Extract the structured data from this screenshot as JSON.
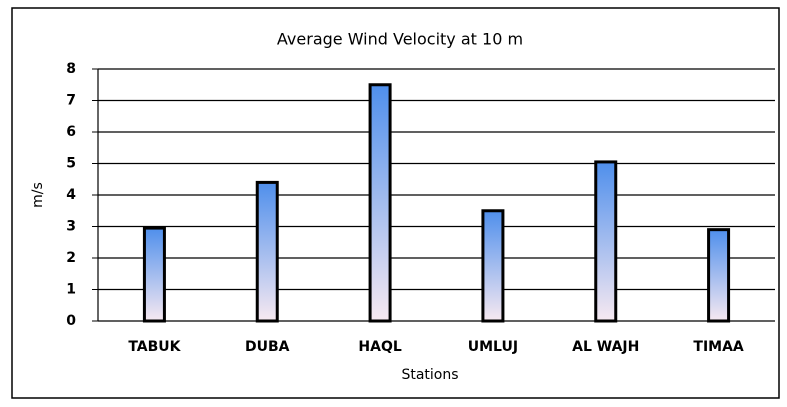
{
  "chart_data": {
    "type": "bar",
    "title": "Average Wind Velocity at 10 m",
    "x_label": "Stations",
    "y_label": "m/s",
    "categories": [
      "TABUK",
      "DUBA",
      "HAQL",
      "UMLUJ",
      "AL WAJH",
      "TIMAA"
    ],
    "values": [
      2.95,
      4.4,
      7.5,
      3.5,
      5.05,
      2.9
    ],
    "color_top": "#4f8fec",
    "color_bottom": "#f7e9f1",
    "ylim": [
      0,
      8
    ],
    "yticks": [
      0,
      1,
      2,
      3,
      4,
      5,
      6,
      7,
      8
    ],
    "grid": true
  }
}
